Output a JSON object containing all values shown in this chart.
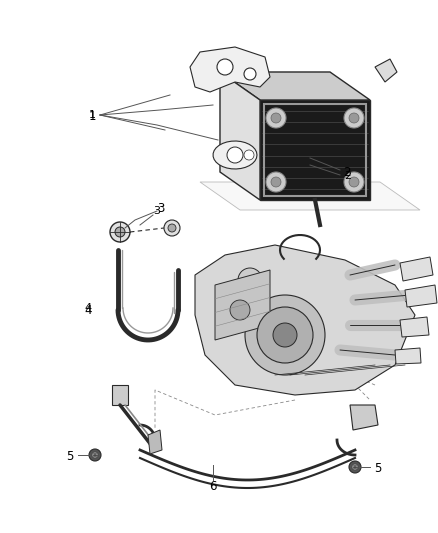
{
  "bg_color": "#ffffff",
  "line_color": "#2a2a2a",
  "label_color": "#000000",
  "fig_width": 4.38,
  "fig_height": 5.33,
  "dpi": 100,
  "leader_color": "#555555",
  "dashed_color": "#888888"
}
